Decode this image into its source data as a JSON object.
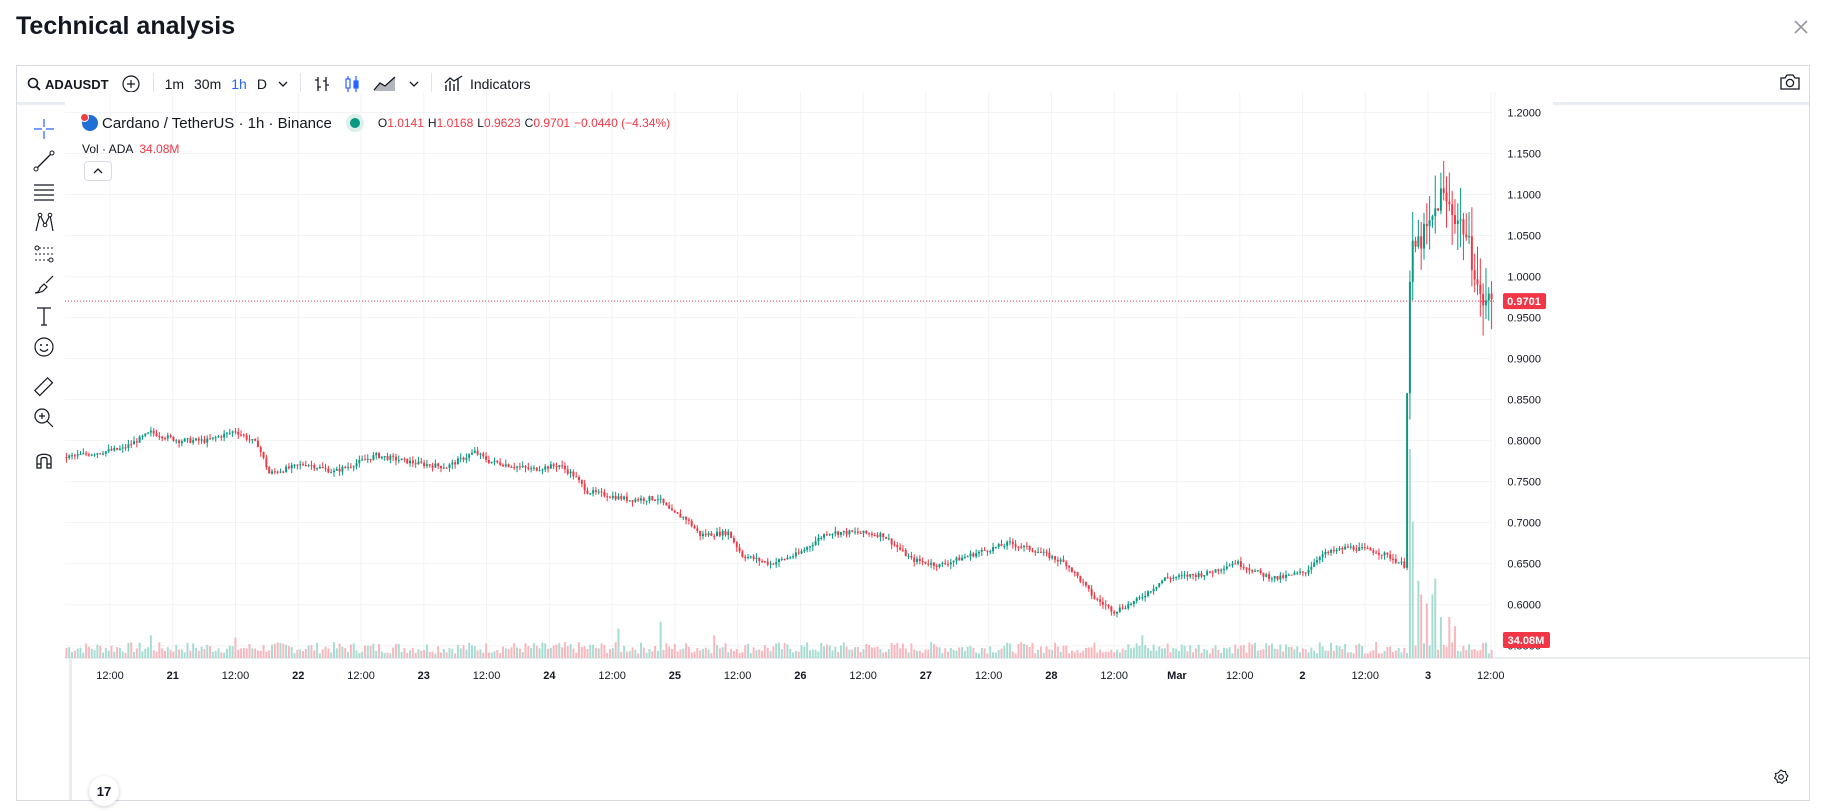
{
  "page": {
    "title": "Technical analysis"
  },
  "toolbar": {
    "symbol": "ADAUSDT",
    "intervals": [
      "1m",
      "30m",
      "1h",
      "D"
    ],
    "active_interval": "1h",
    "indicators_label": "Indicators"
  },
  "legend": {
    "name": "Cardano / TetherUS · 1h · Binance",
    "open_key": "O",
    "open": "1.0141",
    "high_key": "H",
    "high": "1.0168",
    "low_key": "L",
    "low": "0.9623",
    "close_key": "C",
    "close": "0.9701",
    "change": "−0.0440 (−4.34%)"
  },
  "volume_legend": {
    "label": "Vol · ADA",
    "value": "34.08M"
  },
  "logo_text": "17",
  "colors": {
    "up": "#089981",
    "down": "#f23645",
    "accent": "#2962ff"
  },
  "icons": [
    "search-icon",
    "plus-circle-icon",
    "chevron-down-icon",
    "bar-type-icon",
    "candles-icon",
    "area-icon",
    "indicators-icon",
    "camera-icon",
    "crosshair-icon",
    "trendline-icon",
    "fib-icon",
    "pattern-icon",
    "projection-icon",
    "brush-icon",
    "text-icon",
    "emoji-icon",
    "ruler-icon",
    "zoom-in-icon",
    "magnet-icon",
    "close-icon",
    "settings-icon"
  ],
  "chart_data": {
    "type": "candlestick",
    "interval": "1h",
    "price_axis": {
      "ticks": [
        "1.2000",
        "1.1500",
        "1.1000",
        "1.0500",
        "1.0000",
        "0.9500",
        "0.9000",
        "0.8500",
        "0.8000",
        "0.7500",
        "0.7000",
        "0.6500",
        "0.6000",
        "0.5500"
      ],
      "min": 0.535,
      "max": 1.225
    },
    "time_axis": {
      "ticks": [
        "12:00",
        "21",
        "12:00",
        "22",
        "12:00",
        "23",
        "12:00",
        "24",
        "12:00",
        "25",
        "12:00",
        "26",
        "12:00",
        "27",
        "12:00",
        "28",
        "12:00",
        "Mar",
        "12:00",
        "2",
        "12:00",
        "3",
        "12:00"
      ]
    },
    "last_price": "0.9701",
    "last_volume": "34.08M",
    "anchors": [
      [
        0,
        0.78
      ],
      [
        20,
        0.79
      ],
      [
        30,
        0.81
      ],
      [
        40,
        0.8
      ],
      [
        50,
        0.8
      ],
      [
        60,
        0.812
      ],
      [
        68,
        0.795
      ],
      [
        72,
        0.76
      ],
      [
        85,
        0.772
      ],
      [
        95,
        0.762
      ],
      [
        110,
        0.782
      ],
      [
        125,
        0.772
      ],
      [
        135,
        0.768
      ],
      [
        145,
        0.786
      ],
      [
        150,
        0.775
      ],
      [
        165,
        0.765
      ],
      [
        175,
        0.77
      ],
      [
        180,
        0.758
      ],
      [
        185,
        0.738
      ],
      [
        200,
        0.728
      ],
      [
        210,
        0.73
      ],
      [
        215,
        0.712
      ],
      [
        220,
        0.705
      ],
      [
        225,
        0.685
      ],
      [
        235,
        0.688
      ],
      [
        240,
        0.66
      ],
      [
        250,
        0.65
      ],
      [
        260,
        0.662
      ],
      [
        270,
        0.688
      ],
      [
        280,
        0.688
      ],
      [
        290,
        0.685
      ],
      [
        300,
        0.655
      ],
      [
        310,
        0.648
      ],
      [
        325,
        0.665
      ],
      [
        335,
        0.675
      ],
      [
        345,
        0.665
      ],
      [
        355,
        0.65
      ],
      [
        360,
        0.63
      ],
      [
        365,
        0.608
      ],
      [
        372,
        0.592
      ],
      [
        380,
        0.605
      ],
      [
        390,
        0.632
      ],
      [
        405,
        0.638
      ],
      [
        415,
        0.652
      ],
      [
        425,
        0.636
      ],
      [
        430,
        0.632
      ],
      [
        440,
        0.64
      ],
      [
        445,
        0.66
      ],
      [
        455,
        0.67
      ],
      [
        465,
        0.665
      ],
      [
        470,
        0.658
      ],
      [
        475,
        0.648
      ],
      [
        476,
        0.86
      ],
      [
        477,
        0.99
      ],
      [
        478,
        1.03
      ],
      [
        484,
        1.06
      ],
      [
        488,
        1.1
      ],
      [
        492,
        1.08
      ],
      [
        496,
        1.06
      ],
      [
        500,
        1.01
      ],
      [
        502,
        0.97
      ]
    ],
    "volume_spikes": [
      [
        477,
        0.92
      ],
      [
        478,
        0.6
      ],
      [
        480,
        0.34
      ],
      [
        481,
        0.28
      ],
      [
        483,
        0.24
      ],
      [
        485,
        0.28
      ],
      [
        486,
        0.35
      ],
      [
        488,
        0.18
      ],
      [
        491,
        0.18
      ],
      [
        493,
        0.14
      ],
      [
        196,
        0.13
      ],
      [
        211,
        0.16
      ],
      [
        230,
        0.1
      ],
      [
        382,
        0.1
      ],
      [
        30,
        0.1
      ],
      [
        60,
        0.09
      ]
    ]
  }
}
